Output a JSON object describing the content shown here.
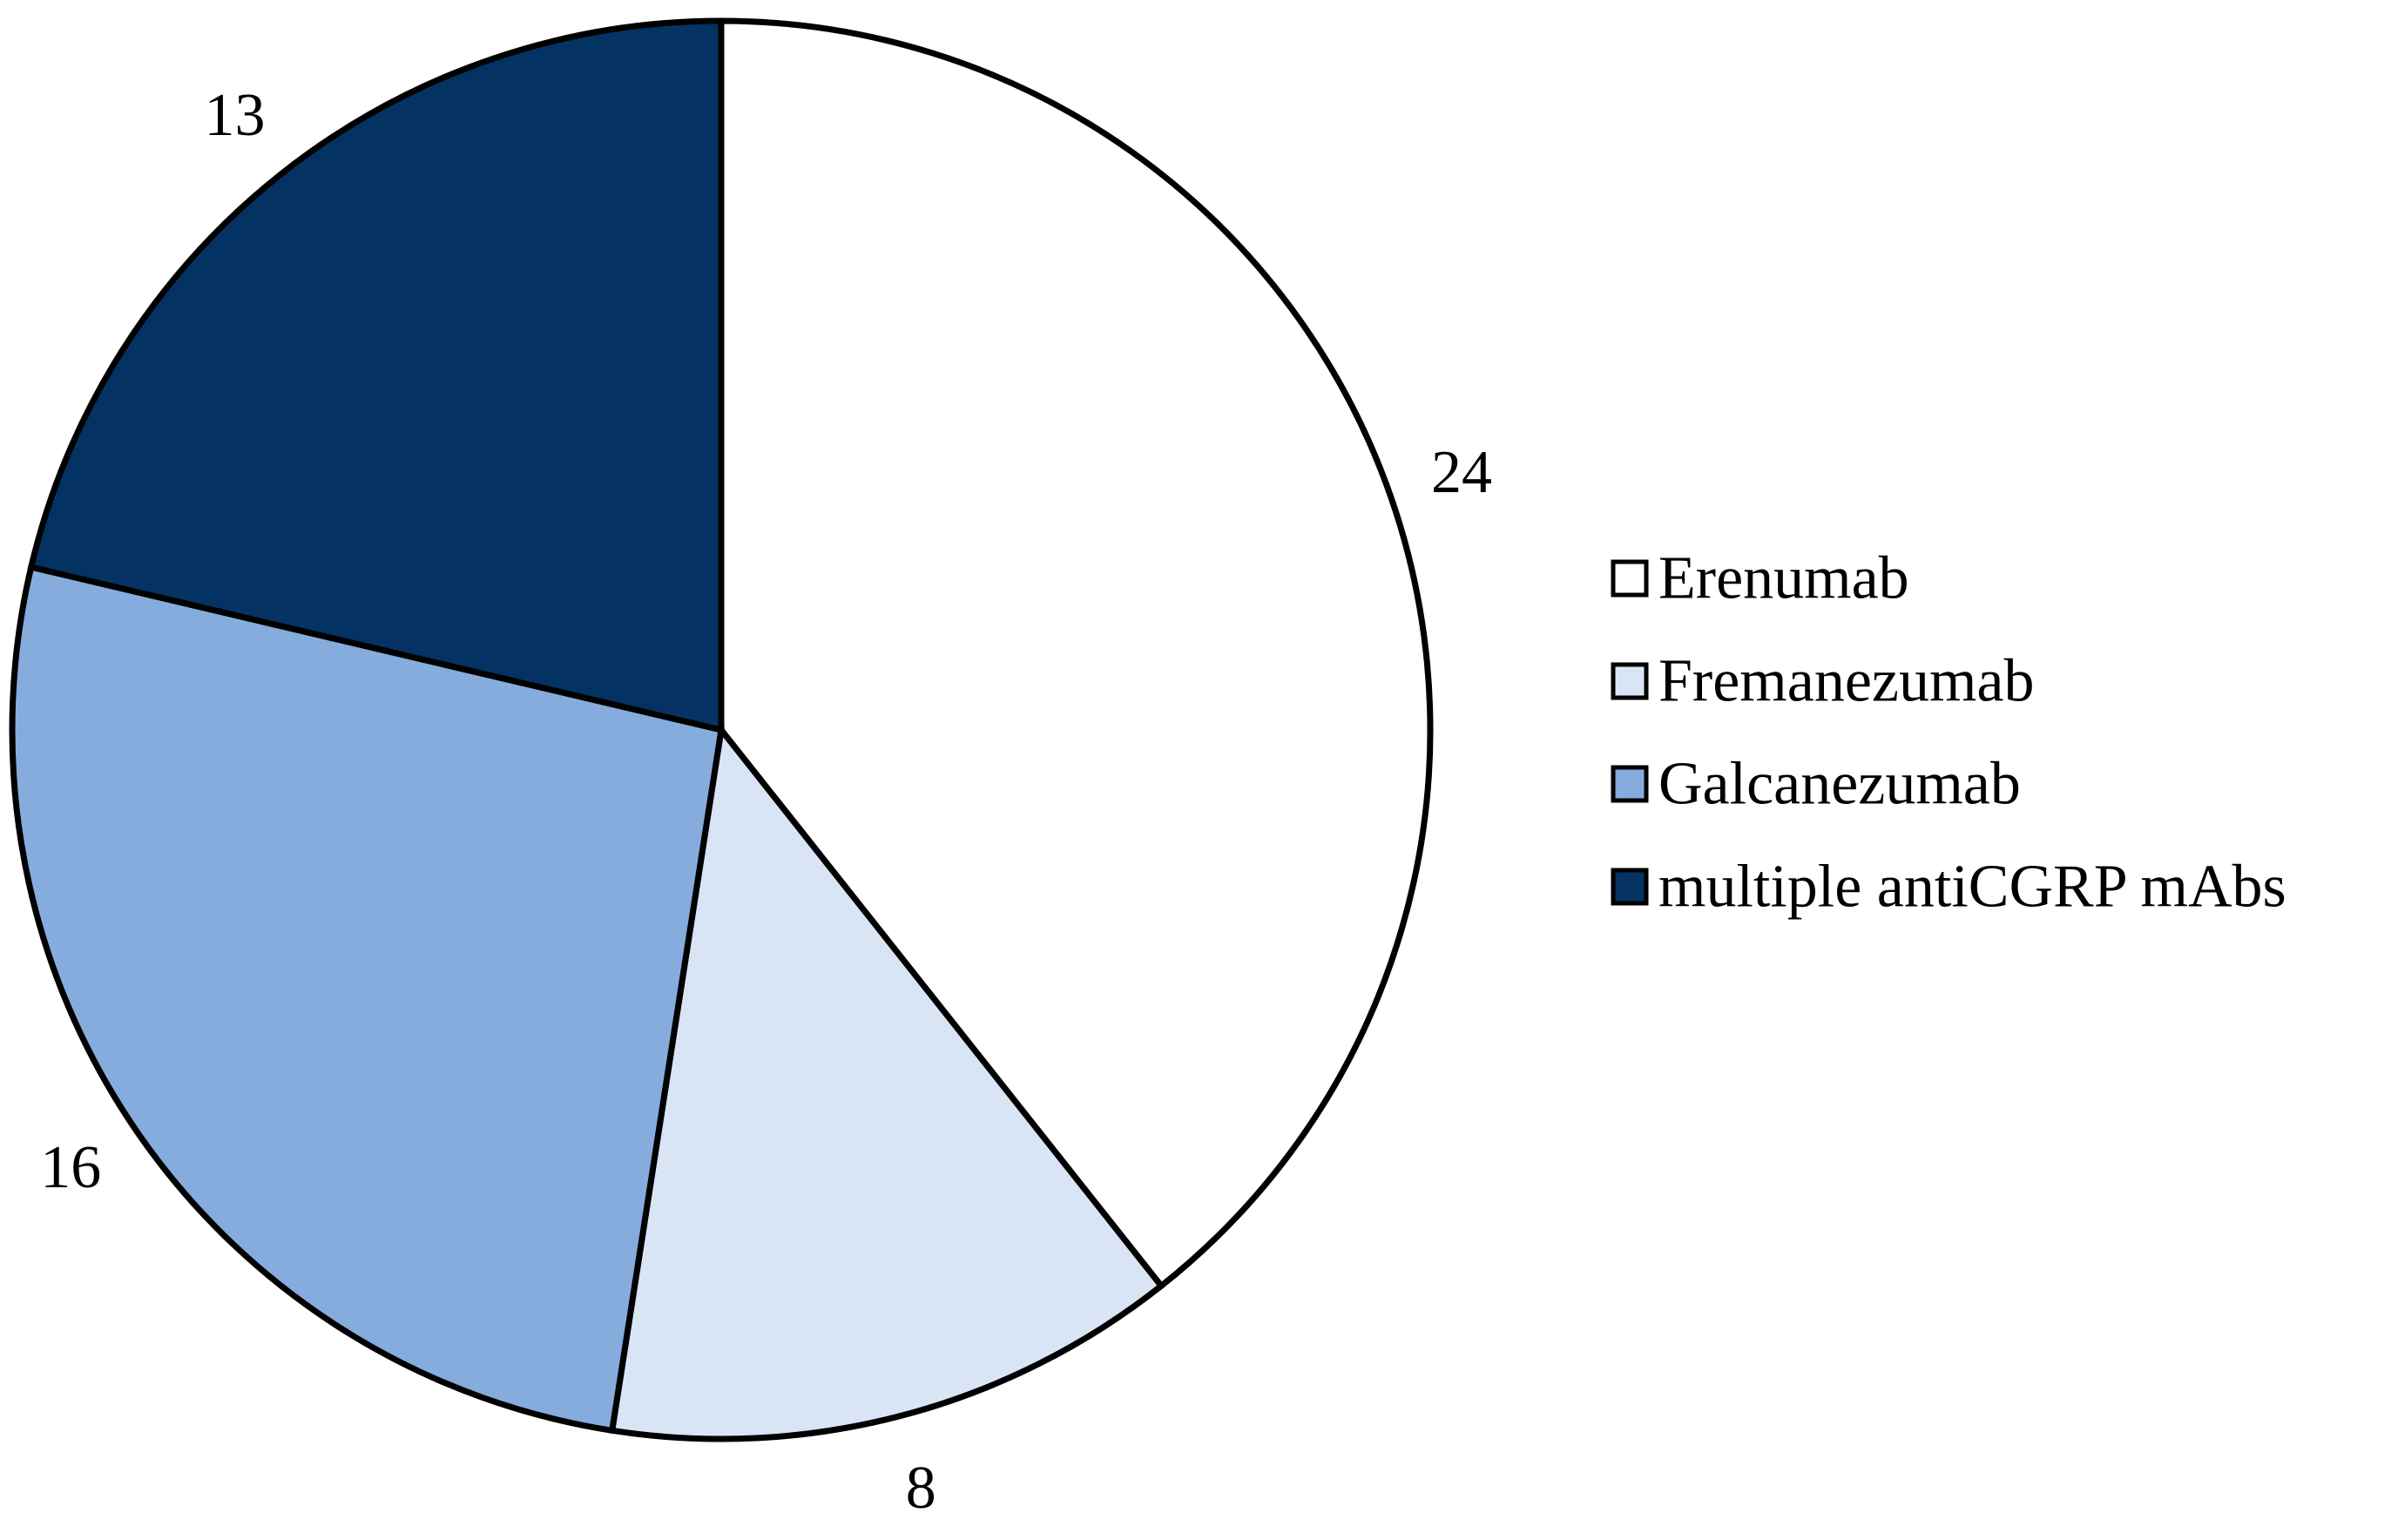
{
  "chart_data": {
    "type": "pie",
    "categories": [
      "Erenumab",
      "Fremanezumab",
      "Galcanezumab",
      "multiple antiCGRP mAbs"
    ],
    "values": [
      24,
      8,
      16,
      13
    ],
    "data_labels": [
      "24",
      "8",
      "16",
      "13"
    ],
    "colors": [
      "#ffffff",
      "#d9e5f4",
      "#86acdd",
      "#043263"
    ],
    "start_angle_deg": 0,
    "direction": "clockwise",
    "title": "",
    "legend": {
      "placement": "right",
      "entries": [
        "Erenumab",
        "Fremanezumab",
        "Galcanezumab",
        "multiple antiCGRP mAbs"
      ]
    },
    "outline_color": "#000000"
  }
}
